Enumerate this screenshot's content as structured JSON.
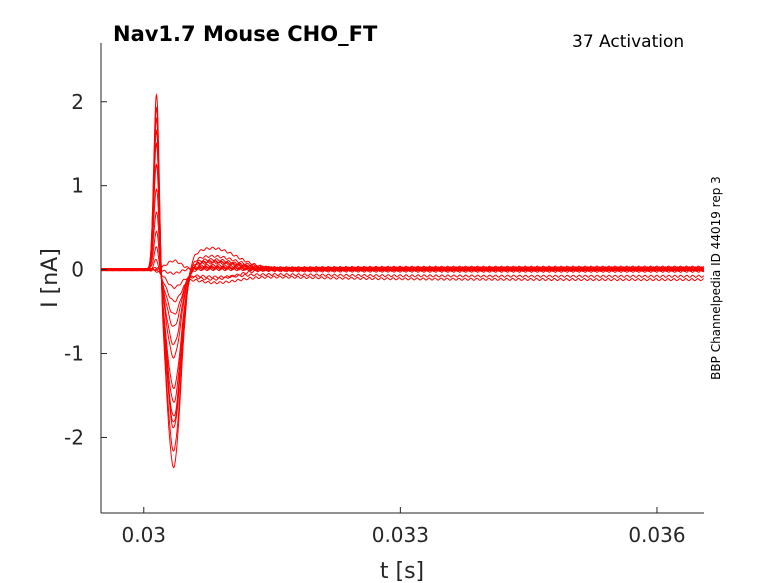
{
  "chart_data": {
    "type": "line",
    "title": "Nav1.7  Mouse  CHO_FT",
    "subtitle": "37  Activation",
    "side_text": "BBP Channelpedia ID 44019 rep 3",
    "xlabel": "t [s]",
    "ylabel": "I [nA]",
    "xlim": [
      0.0295,
      0.03655
    ],
    "ylim": [
      -2.9,
      2.7
    ],
    "x_ticks": [
      0.03,
      0.033,
      0.036
    ],
    "x_tick_labels": [
      "0.03",
      "0.033",
      "0.036"
    ],
    "y_ticks": [
      2,
      1,
      0,
      -1,
      -2
    ],
    "y_tick_labels": [
      "2",
      "1",
      "0",
      "-1",
      "-2"
    ],
    "grid": false,
    "line_color": "#ff0000",
    "series_params": {
      "peak_amplitudes": [
        2.22,
        2.05,
        1.9,
        1.75,
        1.6,
        1.35,
        1.05,
        0.75,
        0.5,
        0.3,
        0.15,
        0.05,
        0.0,
        0.0,
        0.0
      ],
      "trough_amplitudes": [
        -2.42,
        -2.2,
        -1.92,
        -1.85,
        -1.78,
        -1.6,
        -1.42,
        -1.05,
        -0.9,
        -0.68,
        -0.5,
        -0.32,
        -0.18,
        -0.05,
        0.1
      ],
      "rebound_amplitudes": [
        0.25,
        0.15,
        0.12,
        0.1,
        0.08,
        0.07,
        0.05,
        0.04,
        0.03,
        0.0,
        -0.05,
        -0.1,
        -0.12,
        0.02,
        0.0
      ],
      "tail_offsets": [
        0.01,
        0.02,
        0.0,
        -0.01,
        0.03,
        0.02,
        0.0,
        -0.02,
        0.01,
        0.0,
        -0.08,
        -0.12,
        0.01,
        0.0,
        0.02
      ]
    }
  }
}
